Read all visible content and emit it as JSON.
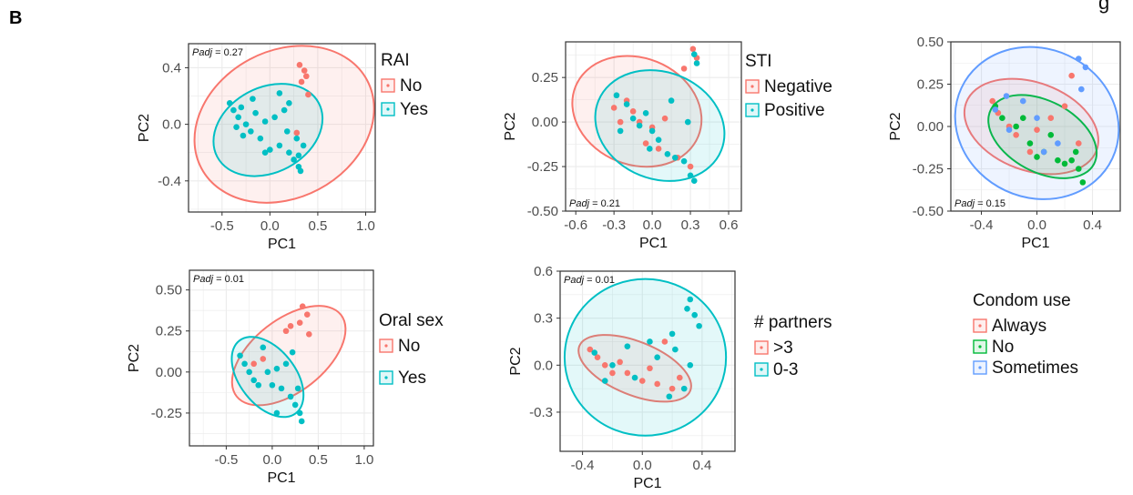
{
  "figure": {
    "panel_letter": "B",
    "top_right_fragment": "g"
  },
  "chart_data": [
    {
      "id": "rai",
      "type": "scatter",
      "xlabel": "PC1",
      "ylabel": "PC2",
      "xlim": [
        -0.85,
        1.1
      ],
      "ylim": [
        -0.62,
        0.57
      ],
      "xticks": [
        -0.5,
        0.0,
        0.5,
        1.0
      ],
      "xtick_labels": [
        "-0.5",
        "0.0",
        "0.5",
        "1.0"
      ],
      "yticks": [
        -0.4,
        0.0,
        0.4
      ],
      "ytick_labels": [
        "-0.4",
        "0.0",
        "0.4"
      ],
      "grid": true,
      "annotation": "Padj = 0.27",
      "legend": {
        "title": "RAI",
        "entries": [
          "No",
          "Yes"
        ]
      },
      "series": [
        {
          "name": "No",
          "color": "#F8766D",
          "points": [
            [
              0.31,
              0.42
            ],
            [
              0.38,
              0.34
            ],
            [
              0.4,
              0.21
            ],
            [
              0.33,
              0.3
            ],
            [
              0.28,
              -0.06
            ],
            [
              0.36,
              0.38
            ]
          ],
          "ellipse": {
            "cx": 0.15,
            "cy": 0.0,
            "rx": 0.98,
            "ry": 0.52,
            "angle": 28
          }
        },
        {
          "name": "Yes",
          "color": "#00BFC4",
          "points": [
            [
              -0.42,
              0.15
            ],
            [
              -0.38,
              0.1
            ],
            [
              -0.33,
              0.05
            ],
            [
              -0.3,
              0.12
            ],
            [
              -0.25,
              0.0
            ],
            [
              -0.2,
              -0.05
            ],
            [
              -0.35,
              -0.02
            ],
            [
              -0.28,
              -0.08
            ],
            [
              -0.15,
              0.08
            ],
            [
              -0.1,
              -0.1
            ],
            [
              -0.05,
              0.02
            ],
            [
              0.0,
              -0.18
            ],
            [
              0.05,
              0.05
            ],
            [
              0.1,
              -0.15
            ],
            [
              0.15,
              0.1
            ],
            [
              0.2,
              -0.2
            ],
            [
              0.25,
              -0.25
            ],
            [
              0.3,
              -0.3
            ],
            [
              0.32,
              -0.33
            ],
            [
              0.28,
              -0.1
            ],
            [
              0.1,
              0.22
            ],
            [
              0.2,
              0.15
            ],
            [
              -0.18,
              0.18
            ],
            [
              0.3,
              -0.22
            ],
            [
              -0.05,
              -0.2
            ],
            [
              0.18,
              -0.05
            ],
            [
              0.35,
              -0.15
            ]
          ],
          "ellipse": {
            "cx": -0.02,
            "cy": -0.04,
            "rx": 0.6,
            "ry": 0.3,
            "angle": 28
          }
        }
      ]
    },
    {
      "id": "sti",
      "type": "scatter",
      "xlabel": "PC1",
      "ylabel": "PC2",
      "xlim": [
        -0.68,
        0.7
      ],
      "ylim": [
        -0.5,
        0.45
      ],
      "xticks": [
        -0.6,
        -0.3,
        0.0,
        0.3,
        0.6
      ],
      "xtick_labels": [
        "-0.6",
        "-0.3",
        "0.0",
        "0.3",
        "0.6"
      ],
      "yticks": [
        -0.5,
        -0.25,
        0.0,
        0.25
      ],
      "ytick_labels": [
        "-0.50",
        "-0.25",
        "0.00",
        "0.25"
      ],
      "grid": true,
      "annotation": "Padj = 0.21",
      "legend": {
        "title": "STI",
        "entries": [
          "Negative",
          "Positive"
        ]
      },
      "series": [
        {
          "name": "Negative",
          "color": "#F8766D",
          "points": [
            [
              0.32,
              0.41
            ],
            [
              0.35,
              0.36
            ],
            [
              0.25,
              0.3
            ],
            [
              -0.2,
              0.12
            ],
            [
              -0.15,
              0.06
            ],
            [
              -0.25,
              0.0
            ],
            [
              0.0,
              -0.03
            ],
            [
              0.1,
              0.02
            ],
            [
              -0.05,
              -0.12
            ],
            [
              0.2,
              -0.2
            ],
            [
              0.3,
              -0.25
            ],
            [
              -0.3,
              0.08
            ],
            [
              0.05,
              -0.15
            ],
            [
              -0.1,
              0.0
            ]
          ],
          "ellipse": {
            "cx": -0.12,
            "cy": 0.06,
            "rx": 0.52,
            "ry": 0.3,
            "angle": -22
          }
        },
        {
          "name": "Positive",
          "color": "#00BFC4",
          "points": [
            [
              0.35,
              0.33
            ],
            [
              0.33,
              0.38
            ],
            [
              -0.28,
              0.15
            ],
            [
              -0.2,
              0.1
            ],
            [
              -0.15,
              0.02
            ],
            [
              -0.1,
              -0.02
            ],
            [
              -0.05,
              0.05
            ],
            [
              0.0,
              -0.05
            ],
            [
              0.05,
              -0.1
            ],
            [
              0.12,
              -0.18
            ],
            [
              0.18,
              -0.2
            ],
            [
              0.25,
              -0.22
            ],
            [
              0.3,
              -0.3
            ],
            [
              0.33,
              -0.33
            ],
            [
              0.28,
              0.0
            ],
            [
              -0.25,
              -0.05
            ],
            [
              0.15,
              0.12
            ],
            [
              -0.02,
              -0.15
            ]
          ],
          "ellipse": {
            "cx": 0.06,
            "cy": -0.02,
            "rx": 0.52,
            "ry": 0.3,
            "angle": -22
          }
        }
      ]
    },
    {
      "id": "condom",
      "type": "scatter",
      "xlabel": "PC1",
      "ylabel": "PC2",
      "xlim": [
        -0.62,
        0.6
      ],
      "ylim": [
        -0.5,
        0.5
      ],
      "xticks": [
        -0.4,
        0.0,
        0.4
      ],
      "xtick_labels": [
        "-0.4",
        "0.0",
        "0.4"
      ],
      "yticks": [
        -0.5,
        -0.25,
        0.0,
        0.25,
        0.5
      ],
      "ytick_labels": [
        "-0.50",
        "-0.25",
        "0.00",
        "0.25",
        "0.50"
      ],
      "grid": true,
      "annotation": "Padj = 0.15",
      "legend": {
        "title": "Condom use",
        "entries": [
          "Always",
          "No",
          "Sometimes"
        ]
      },
      "series": [
        {
          "name": "Always",
          "color": "#F8766D",
          "points": [
            [
              -0.32,
              0.15
            ],
            [
              -0.28,
              0.08
            ],
            [
              -0.2,
              0.0
            ],
            [
              -0.15,
              -0.05
            ],
            [
              0.0,
              -0.02
            ],
            [
              0.1,
              0.05
            ],
            [
              0.2,
              0.12
            ],
            [
              0.25,
              0.3
            ],
            [
              0.3,
              -0.1
            ],
            [
              -0.05,
              -0.15
            ]
          ],
          "ellipse": {
            "cx": -0.04,
            "cy": 0.0,
            "rx": 0.5,
            "ry": 0.26,
            "angle": -20
          }
        },
        {
          "name": "No",
          "color": "#00BA38",
          "points": [
            [
              -0.3,
              0.12
            ],
            [
              -0.25,
              0.05
            ],
            [
              -0.15,
              0.0
            ],
            [
              -0.05,
              -0.1
            ],
            [
              0.0,
              -0.18
            ],
            [
              0.05,
              -0.15
            ],
            [
              0.1,
              -0.05
            ],
            [
              0.15,
              -0.2
            ],
            [
              0.2,
              -0.22
            ],
            [
              0.25,
              -0.2
            ],
            [
              0.3,
              -0.25
            ],
            [
              0.33,
              -0.33
            ],
            [
              0.28,
              -0.15
            ],
            [
              -0.1,
              0.05
            ]
          ],
          "ellipse": {
            "cx": 0.04,
            "cy": -0.06,
            "rx": 0.42,
            "ry": 0.21,
            "angle": -28
          }
        },
        {
          "name": "Sometimes",
          "color": "#619CFF",
          "points": [
            [
              -0.3,
              0.1
            ],
            [
              -0.22,
              0.18
            ],
            [
              -0.1,
              0.15
            ],
            [
              0.05,
              -0.15
            ],
            [
              0.3,
              0.4
            ],
            [
              0.35,
              0.35
            ],
            [
              0.32,
              0.22
            ],
            [
              0.0,
              0.05
            ],
            [
              0.15,
              -0.1
            ],
            [
              -0.2,
              -0.02
            ]
          ],
          "ellipse": {
            "cx": 0.0,
            "cy": 0.02,
            "rx": 0.6,
            "ry": 0.44,
            "angle": -25
          }
        }
      ]
    },
    {
      "id": "oral",
      "type": "scatter",
      "xlabel": "PC1",
      "ylabel": "PC2",
      "xlim": [
        -0.9,
        1.1
      ],
      "ylim": [
        -0.45,
        0.62
      ],
      "xticks": [
        -0.5,
        0.0,
        0.5,
        1.0
      ],
      "xtick_labels": [
        "-0.5",
        "0.0",
        "0.5",
        "1.0"
      ],
      "yticks": [
        -0.25,
        0.0,
        0.25,
        0.5
      ],
      "ytick_labels": [
        "-0.25",
        "0.00",
        "0.25",
        "0.50"
      ],
      "grid": true,
      "annotation": "Padj = 0.01",
      "legend": {
        "title": "Oral sex",
        "entries": [
          "No",
          "Yes"
        ]
      },
      "series": [
        {
          "name": "No",
          "color": "#F8766D",
          "points": [
            [
              0.33,
              0.4
            ],
            [
              0.38,
              0.35
            ],
            [
              0.3,
              0.3
            ],
            [
              0.4,
              0.23
            ],
            [
              0.2,
              0.28
            ],
            [
              0.15,
              0.25
            ],
            [
              -0.2,
              0.05
            ],
            [
              -0.1,
              0.08
            ]
          ],
          "ellipse": {
            "cx": 0.18,
            "cy": 0.1,
            "rx": 0.72,
            "ry": 0.22,
            "angle": 38
          }
        },
        {
          "name": "Yes",
          "color": "#00BFC4",
          "points": [
            [
              -0.35,
              0.1
            ],
            [
              -0.3,
              0.05
            ],
            [
              -0.25,
              0.0
            ],
            [
              -0.2,
              -0.05
            ],
            [
              -0.1,
              0.15
            ],
            [
              -0.05,
              0.0
            ],
            [
              0.0,
              -0.08
            ],
            [
              0.05,
              0.02
            ],
            [
              0.1,
              -0.1
            ],
            [
              0.15,
              0.05
            ],
            [
              0.2,
              -0.15
            ],
            [
              0.25,
              -0.2
            ],
            [
              0.3,
              -0.25
            ],
            [
              0.32,
              -0.3
            ],
            [
              0.28,
              -0.1
            ],
            [
              -0.15,
              -0.08
            ],
            [
              0.22,
              0.12
            ],
            [
              0.05,
              -0.25
            ]
          ],
          "ellipse": {
            "cx": -0.05,
            "cy": -0.03,
            "rx": 0.5,
            "ry": 0.17,
            "angle": -52
          }
        }
      ]
    },
    {
      "id": "partners",
      "type": "scatter",
      "xlabel": "PC1",
      "ylabel": "PC2",
      "xlim": [
        -0.55,
        0.62
      ],
      "ylim": [
        -0.55,
        0.6
      ],
      "xticks": [
        -0.4,
        0.0,
        0.4
      ],
      "xtick_labels": [
        "-0.4",
        "0.0",
        "0.4"
      ],
      "yticks": [
        -0.3,
        0.0,
        0.3,
        0.6
      ],
      "ytick_labels": [
        "-0.3",
        "0.0",
        "0.3",
        "0.6"
      ],
      "grid": true,
      "annotation": "Padj = 0.01",
      "legend": {
        "title": "# partners",
        "entries": [
          ">3",
          "0-3"
        ]
      },
      "series": [
        {
          "name": ">3",
          "color": "#F8766D",
          "points": [
            [
              -0.35,
              0.1
            ],
            [
              -0.3,
              0.05
            ],
            [
              -0.25,
              0.0
            ],
            [
              -0.15,
              0.02
            ],
            [
              -0.1,
              -0.05
            ],
            [
              0.0,
              -0.1
            ],
            [
              0.05,
              -0.02
            ],
            [
              0.1,
              -0.12
            ],
            [
              0.2,
              -0.15
            ],
            [
              0.25,
              -0.08
            ],
            [
              -0.2,
              -0.05
            ],
            [
              0.15,
              0.15
            ]
          ],
          "ellipse": {
            "cx": -0.05,
            "cy": -0.02,
            "rx": 0.4,
            "ry": 0.17,
            "angle": -22
          }
        },
        {
          "name": "0-3",
          "color": "#00BFC4",
          "points": [
            [
              0.32,
              0.42
            ],
            [
              0.35,
              0.32
            ],
            [
              0.3,
              0.36
            ],
            [
              0.38,
              0.25
            ],
            [
              0.2,
              0.2
            ],
            [
              0.22,
              0.1
            ],
            [
              -0.32,
              0.08
            ],
            [
              -0.2,
              0.0
            ],
            [
              -0.05,
              -0.08
            ],
            [
              0.1,
              0.05
            ],
            [
              0.18,
              -0.2
            ],
            [
              0.28,
              -0.15
            ],
            [
              0.32,
              0.0
            ],
            [
              -0.1,
              0.12
            ],
            [
              0.05,
              0.15
            ],
            [
              -0.25,
              -0.1
            ]
          ],
          "ellipse": {
            "cx": 0.02,
            "cy": 0.05,
            "rx": 0.54,
            "ry": 0.5,
            "angle": 0
          }
        }
      ]
    }
  ]
}
